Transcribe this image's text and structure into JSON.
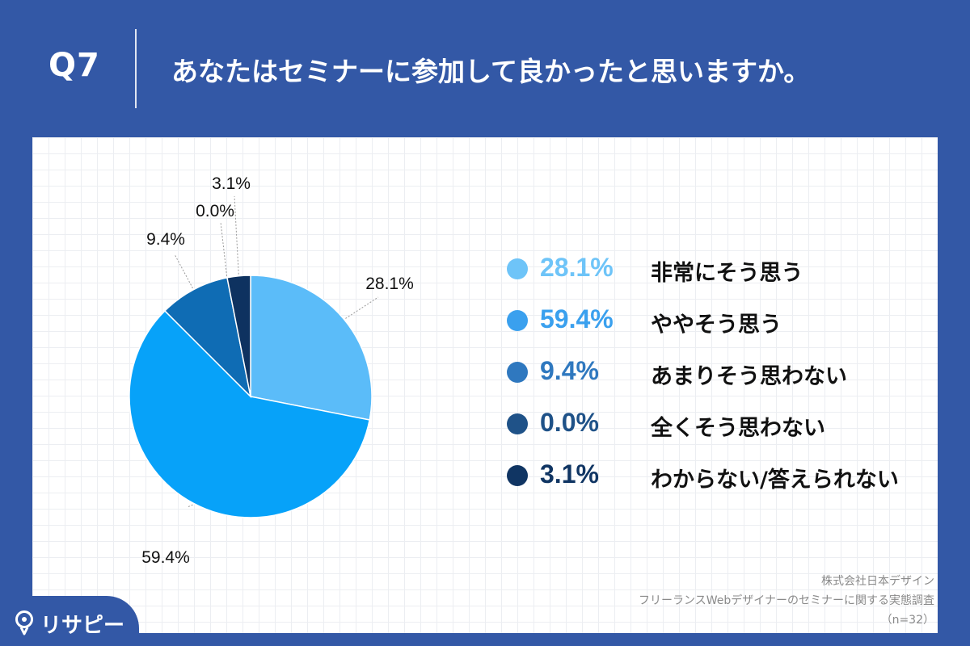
{
  "header": {
    "qnum": "Q7",
    "question": "あなたはセミナーに参加して良かったと思いますか。"
  },
  "chart_data": {
    "type": "pie",
    "title": "",
    "categories": [
      "非常にそう思う",
      "ややそう思う",
      "あまりそう思わない",
      "全くそう思わない",
      "わからない/答えられない"
    ],
    "values": [
      28.1,
      59.4,
      9.4,
      0.0,
      3.1
    ],
    "data_labels": [
      "28.1%",
      "59.4%",
      "9.4%",
      "0.0%",
      "3.1%"
    ],
    "colors": [
      "#5bbcf9",
      "#07a2f9",
      "#0f6cb4",
      "#1a5389",
      "#0e3260"
    ],
    "legend_colors": [
      "#6ec4f8",
      "#3aa0ee",
      "#2f78bf",
      "#1f5288",
      "#103563"
    ],
    "legend_placement": "right",
    "start_angle": "12 o'clock",
    "direction": "clockwise"
  },
  "legend": {
    "items": [
      {
        "pct": "28.1%",
        "label": "非常にそう思う",
        "color": "#6ec4f8"
      },
      {
        "pct": "59.4%",
        "label": "ややそう思う",
        "color": "#3aa0ee"
      },
      {
        "pct": "9.4%",
        "label": "あまりそう思わない",
        "color": "#2f78bf"
      },
      {
        "pct": "0.0%",
        "label": "全くそう思わない",
        "color": "#1f5288"
      },
      {
        "pct": "3.1%",
        "label": "わからない/答えられない",
        "color": "#103563"
      }
    ]
  },
  "source": {
    "company": "株式会社日本デザイン",
    "survey": "フリーランスWebデザイナーのセミナーに関する実態調査",
    "sample": "（n=32）"
  },
  "logo": {
    "text": "リサピー",
    "icon": "pin-icon"
  }
}
